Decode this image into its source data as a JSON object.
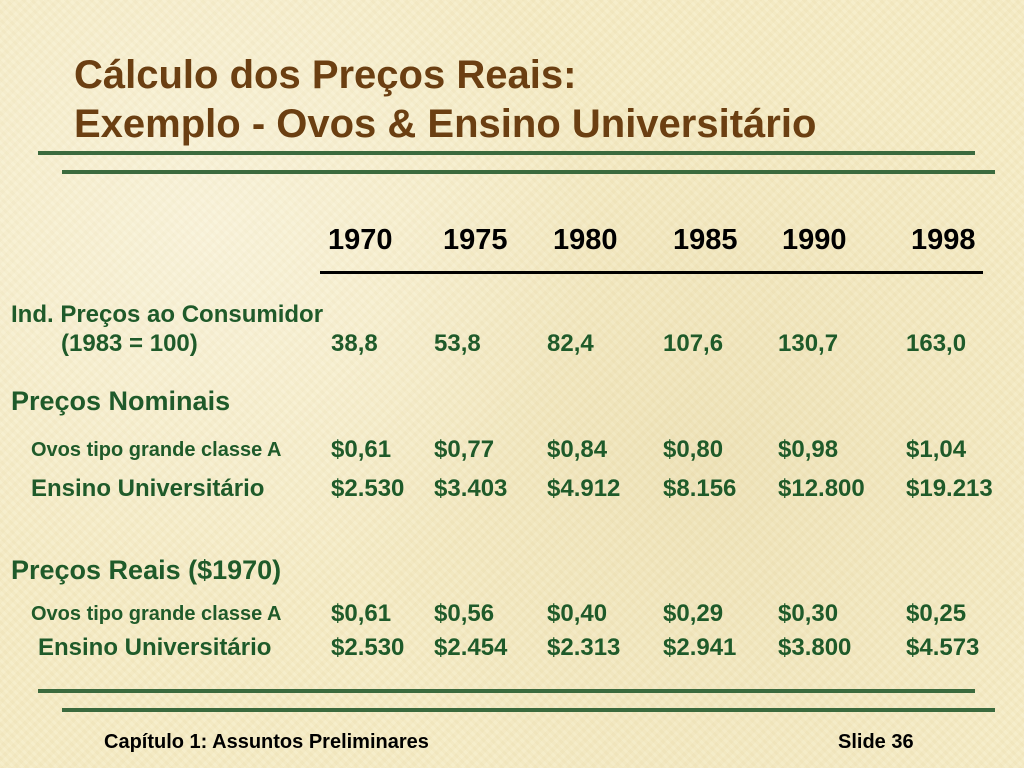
{
  "title": {
    "line1": "Cálculo dos Preços Reais:",
    "line2": "Exemplo - Ovos & Ensino Universitário"
  },
  "years": [
    "1970",
    "1975",
    "1980",
    "1985",
    "1990",
    "1998"
  ],
  "cpi": {
    "label_line1": "Ind. Preços ao Consumidor",
    "label_line2": "(1983 = 100)",
    "values": [
      "38,8",
      "53,8",
      "82,4",
      "107,6",
      "130,7",
      "163,0"
    ]
  },
  "nominal": {
    "heading": "Preços Nominais",
    "eggs_label": "Ovos tipo grande classe A",
    "eggs_values": [
      "$0,61",
      "$0,77",
      "$0,84",
      "$0,80",
      "$0,98",
      "$1,04"
    ],
    "college_label": "Ensino Universitário",
    "college_values": [
      "$2.530",
      "$3.403",
      "$4.912",
      "$8.156",
      "$12.800",
      "$19.213"
    ]
  },
  "real": {
    "heading": "Preços Reais ($1970)",
    "eggs_label": "Ovos tipo grande classe A",
    "eggs_values": [
      "$0,61",
      "$0,56",
      "$0,40",
      "$0,29",
      "$0,30",
      "$0,25"
    ],
    "college_label": "Ensino Universitário",
    "college_values": [
      "$2.530",
      "$2.454",
      "$2.313",
      "$2.941",
      "$3.800",
      "$4.573"
    ]
  },
  "footer": {
    "chapter": "Capítulo 1: Assuntos Preliminares",
    "slide": "Slide 36"
  },
  "colors": {
    "title": "#6b3f12",
    "text_green": "#1f5a2a",
    "rule_green": "#3b6a3e",
    "background": "#f6ecc6"
  }
}
